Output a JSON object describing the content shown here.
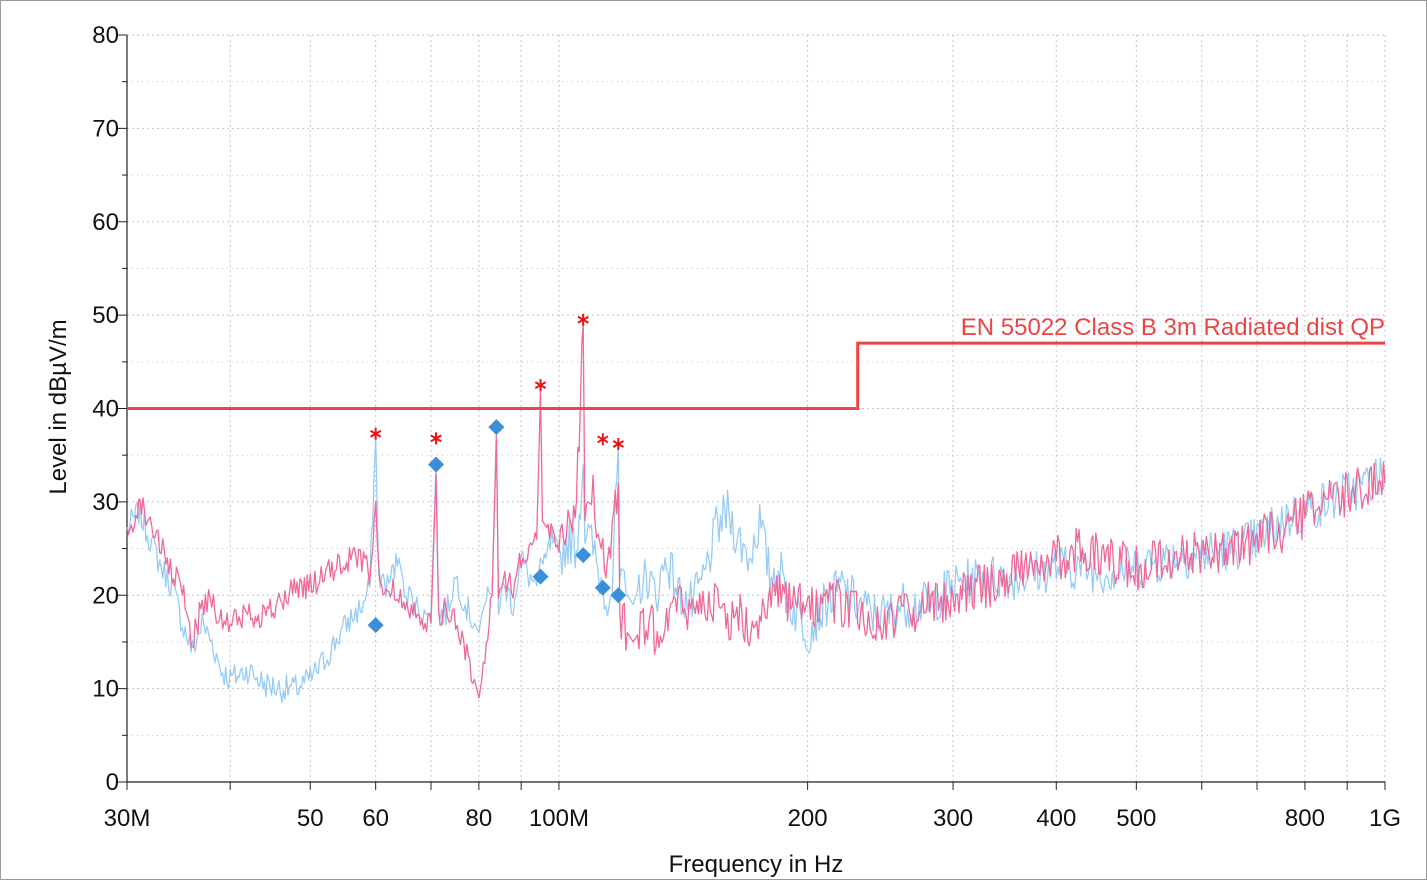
{
  "chart_data": {
    "type": "line",
    "xlabel": "Frequency in Hz",
    "ylabel": "Level in dBµV/m",
    "x_scale": "log",
    "xlim": [
      30000000,
      1000000000
    ],
    "ylim": [
      0,
      80
    ],
    "grid": true,
    "x_ticks": [
      {
        "value": 30000000,
        "label": "30M"
      },
      {
        "value": 50000000,
        "label": "50"
      },
      {
        "value": 60000000,
        "label": "60"
      },
      {
        "value": 80000000,
        "label": "80"
      },
      {
        "value": 100000000,
        "label": "100M"
      },
      {
        "value": 200000000,
        "label": "200"
      },
      {
        "value": 300000000,
        "label": "300"
      },
      {
        "value": 400000000,
        "label": "400"
      },
      {
        "value": 500000000,
        "label": "500"
      },
      {
        "value": 800000000,
        "label": "800"
      },
      {
        "value": 1000000000,
        "label": "1G"
      }
    ],
    "x_minor_ticks": [
      40000000,
      70000000,
      90000000,
      600000000,
      700000000,
      900000000
    ],
    "y_ticks": [
      0,
      10,
      20,
      30,
      40,
      50,
      60,
      70,
      80
    ],
    "limit_line": {
      "name": "EN 55022 Class B 3m Radiated dist QP",
      "color": "#ee4444",
      "points": [
        [
          30000000,
          40
        ],
        [
          230000000,
          40
        ],
        [
          230000000,
          47
        ],
        [
          1000000000,
          47
        ]
      ]
    },
    "series": [
      {
        "color": "#99ccf5",
        "points": [
          [
            30000000,
            27
          ],
          [
            31000000,
            29
          ],
          [
            32000000,
            26
          ],
          [
            33000000,
            23
          ],
          [
            34000000,
            21
          ],
          [
            35000000,
            17
          ],
          [
            36000000,
            14
          ],
          [
            37000000,
            17
          ],
          [
            38000000,
            15
          ],
          [
            39000000,
            12
          ],
          [
            40000000,
            11
          ],
          [
            42000000,
            12
          ],
          [
            44000000,
            10.5
          ],
          [
            46000000,
            10
          ],
          [
            48000000,
            10
          ],
          [
            50000000,
            11
          ],
          [
            52000000,
            13
          ],
          [
            54000000,
            15.5
          ],
          [
            56000000,
            17.5
          ],
          [
            58000000,
            19
          ],
          [
            59000000,
            21
          ],
          [
            60000000,
            37
          ],
          [
            60500000,
            22
          ],
          [
            62000000,
            21
          ],
          [
            64000000,
            24
          ],
          [
            65000000,
            21
          ],
          [
            67000000,
            19
          ],
          [
            69000000,
            18
          ],
          [
            70000000,
            18
          ],
          [
            71000000,
            34
          ],
          [
            71500000,
            18
          ],
          [
            73000000,
            18
          ],
          [
            75000000,
            22
          ],
          [
            77000000,
            19
          ],
          [
            79000000,
            17
          ],
          [
            80000000,
            16
          ],
          [
            81000000,
            19
          ],
          [
            83000000,
            20
          ],
          [
            84000000,
            38
          ],
          [
            84500000,
            19
          ],
          [
            86000000,
            21
          ],
          [
            88000000,
            19
          ],
          [
            90000000,
            24
          ],
          [
            92000000,
            22
          ],
          [
            94000000,
            21
          ],
          [
            95000000,
            24
          ],
          [
            96000000,
            23
          ],
          [
            98000000,
            26
          ],
          [
            100000000,
            24
          ],
          [
            103000000,
            26
          ],
          [
            105000000,
            25
          ],
          [
            107000000,
            34
          ],
          [
            107500000,
            27
          ],
          [
            110000000,
            25
          ],
          [
            112000000,
            22
          ],
          [
            114000000,
            20
          ],
          [
            116000000,
            21
          ],
          [
            118000000,
            36
          ],
          [
            118500000,
            21
          ],
          [
            121000000,
            20
          ],
          [
            123000000,
            19
          ],
          [
            125000000,
            21
          ],
          [
            128000000,
            22
          ],
          [
            131000000,
            20
          ],
          [
            135000000,
            24
          ],
          [
            140000000,
            20
          ],
          [
            145000000,
            19
          ],
          [
            150000000,
            22
          ],
          [
            155000000,
            27
          ],
          [
            160000000,
            29
          ],
          [
            165000000,
            26
          ],
          [
            170000000,
            24
          ],
          [
            175000000,
            28
          ],
          [
            180000000,
            22
          ],
          [
            185000000,
            23
          ],
          [
            190000000,
            19
          ],
          [
            195000000,
            18
          ],
          [
            200000000,
            16
          ],
          [
            210000000,
            19
          ],
          [
            220000000,
            21
          ],
          [
            230000000,
            19
          ],
          [
            240000000,
            18
          ],
          [
            250000000,
            18
          ],
          [
            260000000,
            19
          ],
          [
            280000000,
            19
          ],
          [
            300000000,
            21
          ],
          [
            330000000,
            22
          ],
          [
            360000000,
            22
          ],
          [
            400000000,
            23
          ],
          [
            430000000,
            23
          ],
          [
            460000000,
            22.5
          ],
          [
            500000000,
            23
          ],
          [
            550000000,
            24
          ],
          [
            600000000,
            24.5
          ],
          [
            650000000,
            25
          ],
          [
            700000000,
            26
          ],
          [
            750000000,
            28
          ],
          [
            800000000,
            29
          ],
          [
            850000000,
            30
          ],
          [
            900000000,
            31
          ],
          [
            950000000,
            32
          ],
          [
            1000000000,
            33
          ]
        ]
      },
      {
        "color": "#f06898",
        "points": [
          [
            30000000,
            26
          ],
          [
            31000000,
            30
          ],
          [
            32000000,
            28
          ],
          [
            33000000,
            25
          ],
          [
            34000000,
            22
          ],
          [
            35000000,
            21
          ],
          [
            36000000,
            15
          ],
          [
            37000000,
            19
          ],
          [
            38000000,
            20
          ],
          [
            39000000,
            17
          ],
          [
            40000000,
            17
          ],
          [
            42000000,
            18
          ],
          [
            44000000,
            18
          ],
          [
            46000000,
            19
          ],
          [
            48000000,
            21
          ],
          [
            50000000,
            21
          ],
          [
            52000000,
            22
          ],
          [
            54000000,
            23
          ],
          [
            56000000,
            24
          ],
          [
            58000000,
            24
          ],
          [
            59000000,
            22
          ],
          [
            60000000,
            30
          ],
          [
            60500000,
            22
          ],
          [
            62000000,
            21
          ],
          [
            64000000,
            20
          ],
          [
            66000000,
            19
          ],
          [
            68000000,
            18
          ],
          [
            70000000,
            17
          ],
          [
            71000000,
            33
          ],
          [
            71500000,
            17
          ],
          [
            73000000,
            19
          ],
          [
            75000000,
            17
          ],
          [
            77000000,
            14
          ],
          [
            79000000,
            11
          ],
          [
            80000000,
            9
          ],
          [
            81000000,
            12
          ],
          [
            83000000,
            20
          ],
          [
            84000000,
            37
          ],
          [
            84500000,
            20
          ],
          [
            86000000,
            22
          ],
          [
            88000000,
            21
          ],
          [
            90000000,
            24
          ],
          [
            92000000,
            25
          ],
          [
            94000000,
            26
          ],
          [
            95000000,
            42
          ],
          [
            95500000,
            28
          ],
          [
            97000000,
            27
          ],
          [
            100000000,
            26
          ],
          [
            103000000,
            28
          ],
          [
            105000000,
            30
          ],
          [
            107000000,
            49
          ],
          [
            107500000,
            30
          ],
          [
            110000000,
            31
          ],
          [
            112000000,
            26
          ],
          [
            114000000,
            23
          ],
          [
            116000000,
            26
          ],
          [
            118000000,
            32
          ],
          [
            118500000,
            18
          ],
          [
            121000000,
            16
          ],
          [
            123000000,
            15
          ],
          [
            125000000,
            16
          ],
          [
            128000000,
            17
          ],
          [
            131000000,
            16
          ],
          [
            135000000,
            18
          ],
          [
            140000000,
            19
          ],
          [
            145000000,
            18
          ],
          [
            150000000,
            20
          ],
          [
            155000000,
            19
          ],
          [
            160000000,
            17
          ],
          [
            165000000,
            18
          ],
          [
            170000000,
            17
          ],
          [
            175000000,
            18
          ],
          [
            180000000,
            19
          ],
          [
            185000000,
            20
          ],
          [
            190000000,
            19
          ],
          [
            195000000,
            19
          ],
          [
            200000000,
            18
          ],
          [
            210000000,
            20
          ],
          [
            220000000,
            19
          ],
          [
            230000000,
            18
          ],
          [
            240000000,
            17
          ],
          [
            250000000,
            17
          ],
          [
            260000000,
            18
          ],
          [
            280000000,
            19
          ],
          [
            300000000,
            20
          ],
          [
            330000000,
            21
          ],
          [
            360000000,
            23
          ],
          [
            400000000,
            24
          ],
          [
            430000000,
            25
          ],
          [
            460000000,
            24
          ],
          [
            500000000,
            23
          ],
          [
            550000000,
            24
          ],
          [
            600000000,
            24.5
          ],
          [
            650000000,
            25
          ],
          [
            700000000,
            26
          ],
          [
            750000000,
            27
          ],
          [
            800000000,
            28.5
          ],
          [
            850000000,
            30
          ],
          [
            900000000,
            31
          ],
          [
            950000000,
            31.5
          ],
          [
            1000000000,
            32
          ]
        ]
      }
    ],
    "peak_markers": {
      "color": "#ee1111",
      "symbol": "*",
      "points": [
        [
          60000000,
          37.3
        ],
        [
          71000000,
          36.8
        ],
        [
          95000000,
          42.5
        ],
        [
          107000000,
          49.5
        ],
        [
          113000000,
          36.7
        ],
        [
          118000000,
          36.2
        ]
      ]
    },
    "qp_markers": {
      "color": "#3a8fd8",
      "symbol": "diamond",
      "points": [
        [
          60000000,
          16.8
        ],
        [
          71000000,
          34
        ],
        [
          84000000,
          38
        ],
        [
          95000000,
          22
        ],
        [
          107000000,
          24.3
        ],
        [
          113000000,
          20.8
        ],
        [
          118000000,
          20
        ]
      ]
    }
  }
}
